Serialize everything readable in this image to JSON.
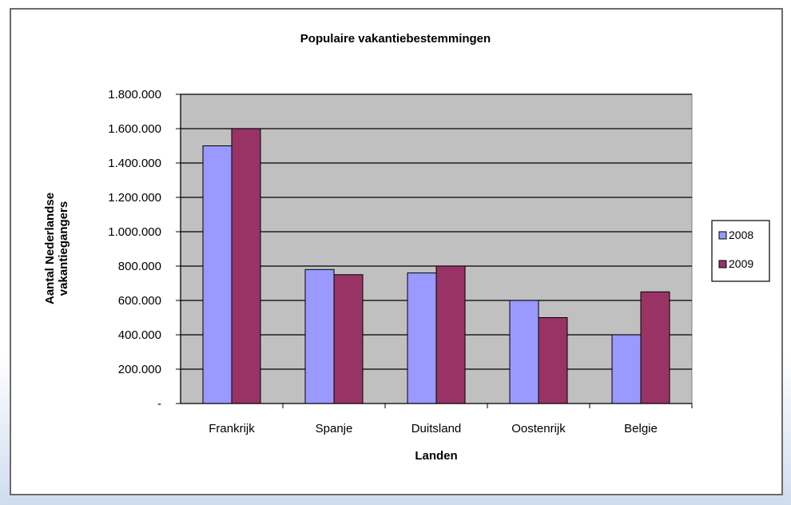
{
  "chart_data": {
    "type": "bar",
    "title": "Populaire vakantiebestemmingen",
    "xlabel": "Landen",
    "ylabel_lines": [
      "Aantal Nederlandse",
      "vakantiegangers"
    ],
    "categories": [
      "Frankrijk",
      "Spanje",
      "Duitsland",
      "Oostenrijk",
      "Belgie"
    ],
    "series": [
      {
        "name": "2008",
        "color": "#9999ff",
        "values": [
          1500000,
          780000,
          760000,
          600000,
          400000
        ]
      },
      {
        "name": "2009",
        "color": "#993366",
        "values": [
          1600000,
          750000,
          800000,
          500000,
          650000
        ]
      }
    ],
    "ylim": [
      0,
      1800000
    ],
    "yticks": [
      0,
      200000,
      400000,
      600000,
      800000,
      1000000,
      1200000,
      1400000,
      1600000,
      1800000
    ],
    "ytick_labels": [
      "-",
      "200.000",
      "400.000",
      "600.000",
      "800.000",
      "1.000.000",
      "1.200.000",
      "1.400.000",
      "1.600.000",
      "1.800.000"
    ],
    "grid": true,
    "plot_background": "#c0c0c0",
    "legend_position": "right"
  }
}
